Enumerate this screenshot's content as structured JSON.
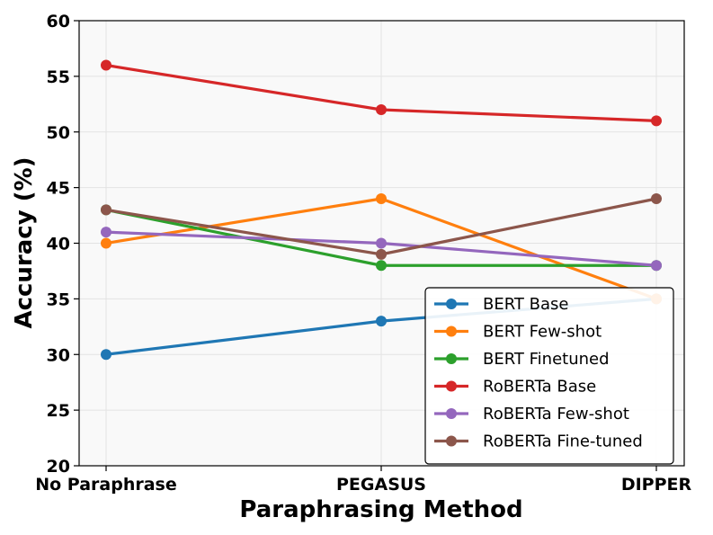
{
  "chart_data": {
    "type": "line",
    "xlabel": "Paraphrasing Method",
    "ylabel": "Accuracy (%)",
    "categories": [
      "No Paraphrase",
      "PEGASUS",
      "DIPPER"
    ],
    "ylim": [
      20,
      60
    ],
    "yticks": [
      20,
      25,
      30,
      35,
      40,
      45,
      50,
      55,
      60
    ],
    "grid": true,
    "legend_position": "lower-right",
    "series": [
      {
        "name": "BERT Base",
        "color": "#1f77b4",
        "values": [
          30,
          33,
          35
        ]
      },
      {
        "name": "BERT Few-shot",
        "color": "#ff7f0e",
        "values": [
          40,
          44,
          35
        ]
      },
      {
        "name": "BERT Finetuned",
        "color": "#2ca02c",
        "values": [
          43,
          38,
          38
        ]
      },
      {
        "name": "RoBERTa Base",
        "color": "#d62728",
        "values": [
          56,
          52,
          51
        ]
      },
      {
        "name": "RoBERTa Few-shot",
        "color": "#9467bd",
        "values": [
          41,
          40,
          38
        ]
      },
      {
        "name": "RoBERTa Fine-tuned",
        "color": "#8c564b",
        "values": [
          43,
          39,
          44
        ]
      }
    ]
  }
}
